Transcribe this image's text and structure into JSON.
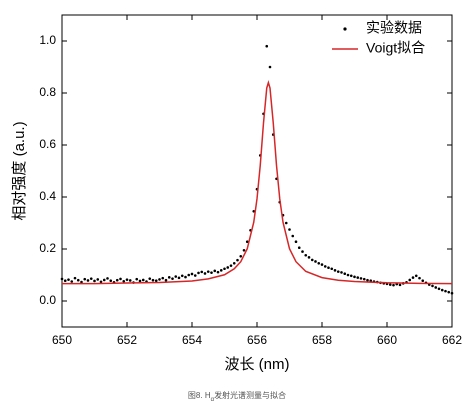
{
  "chart_data": {
    "type": "scatter",
    "xlabel": "波长 (nm)",
    "ylabel": "相对强度 (a.u.)",
    "caption": [
      "图8. H",
      "α",
      "发射光谱测量与拟合"
    ],
    "xlim": [
      650,
      662
    ],
    "xticks": [
      650,
      652,
      654,
      656,
      658,
      660,
      662
    ],
    "ylim": [
      -0.1,
      1.1
    ],
    "yticks": [
      {
        "value": 0,
        "label": "0.0"
      },
      0.2,
      0.4,
      0.6,
      0.8,
      {
        "value": 1,
        "label": "1.0"
      }
    ],
    "legend": "top-right",
    "series": [
      {
        "name": "实验数据",
        "type": "scatter",
        "color": "#000000",
        "x": [
          650.0,
          650.1,
          650.2,
          650.3,
          650.4,
          650.5,
          650.6,
          650.7,
          650.8,
          650.9,
          651.0,
          651.1,
          651.2,
          651.3,
          651.4,
          651.5,
          651.6,
          651.7,
          651.8,
          651.9,
          652.0,
          652.1,
          652.2,
          652.3,
          652.4,
          652.5,
          652.6,
          652.7,
          652.8,
          652.9,
          653.0,
          653.1,
          653.2,
          653.3,
          653.4,
          653.5,
          653.6,
          653.7,
          653.8,
          653.9,
          654.0,
          654.1,
          654.2,
          654.3,
          654.4,
          654.5,
          654.6,
          654.7,
          654.8,
          654.9,
          655.0,
          655.1,
          655.2,
          655.3,
          655.4,
          655.5,
          655.6,
          655.7,
          655.8,
          655.9,
          656.0,
          656.1,
          656.2,
          656.3,
          656.4,
          656.5,
          656.6,
          656.7,
          656.8,
          656.9,
          657.0,
          657.1,
          657.2,
          657.3,
          657.4,
          657.5,
          657.6,
          657.7,
          657.8,
          657.9,
          658.0,
          658.1,
          658.2,
          658.3,
          658.4,
          658.5,
          658.6,
          658.7,
          658.8,
          658.9,
          659.0,
          659.1,
          659.2,
          659.3,
          659.4,
          659.5,
          659.6,
          659.7,
          659.8,
          659.9,
          660.0,
          660.1,
          660.2,
          660.3,
          660.4,
          660.5,
          660.6,
          660.7,
          660.8,
          660.9,
          661.0,
          661.1,
          661.2,
          661.3,
          661.4,
          661.5,
          661.6,
          661.7,
          661.8,
          661.9,
          662.0
        ],
        "values": [
          0.085,
          0.078,
          0.082,
          0.075,
          0.088,
          0.08,
          0.073,
          0.084,
          0.079,
          0.086,
          0.077,
          0.083,
          0.074,
          0.081,
          0.087,
          0.078,
          0.072,
          0.08,
          0.085,
          0.076,
          0.082,
          0.079,
          0.071,
          0.084,
          0.077,
          0.081,
          0.075,
          0.086,
          0.08,
          0.078,
          0.083,
          0.088,
          0.08,
          0.091,
          0.086,
          0.094,
          0.089,
          0.097,
          0.092,
          0.1,
          0.104,
          0.098,
          0.108,
          0.112,
          0.106,
          0.113,
          0.109,
          0.116,
          0.111,
          0.118,
          0.124,
          0.129,
          0.136,
          0.145,
          0.157,
          0.172,
          0.195,
          0.228,
          0.272,
          0.345,
          0.43,
          0.56,
          0.72,
          0.98,
          0.9,
          0.64,
          0.47,
          0.38,
          0.33,
          0.3,
          0.275,
          0.25,
          0.228,
          0.205,
          0.19,
          0.176,
          0.168,
          0.158,
          0.152,
          0.145,
          0.14,
          0.133,
          0.128,
          0.124,
          0.118,
          0.113,
          0.11,
          0.105,
          0.1,
          0.097,
          0.093,
          0.09,
          0.087,
          0.084,
          0.08,
          0.078,
          0.075,
          0.073,
          0.07,
          0.068,
          0.066,
          0.063,
          0.061,
          0.065,
          0.062,
          0.068,
          0.072,
          0.081,
          0.09,
          0.097,
          0.088,
          0.078,
          0.07,
          0.063,
          0.058,
          0.052,
          0.047,
          0.042,
          0.038,
          0.034,
          0.03
        ]
      },
      {
        "name": "Voigt拟合",
        "type": "line",
        "color": "#d62728",
        "x": [
          650,
          651,
          652,
          653,
          654,
          654.5,
          655,
          655.3,
          655.5,
          655.7,
          655.9,
          656,
          656.1,
          656.2,
          656.3,
          656.35,
          656.4,
          656.5,
          656.6,
          656.7,
          656.8,
          657,
          657.2,
          657.5,
          658,
          658.5,
          659,
          660,
          661,
          662
        ],
        "values": [
          0.067,
          0.067,
          0.069,
          0.071,
          0.077,
          0.085,
          0.101,
          0.124,
          0.151,
          0.201,
          0.303,
          0.393,
          0.522,
          0.685,
          0.819,
          0.84,
          0.819,
          0.685,
          0.522,
          0.393,
          0.303,
          0.201,
          0.151,
          0.114,
          0.09,
          0.08,
          0.075,
          0.07,
          0.068,
          0.067
        ]
      }
    ]
  }
}
